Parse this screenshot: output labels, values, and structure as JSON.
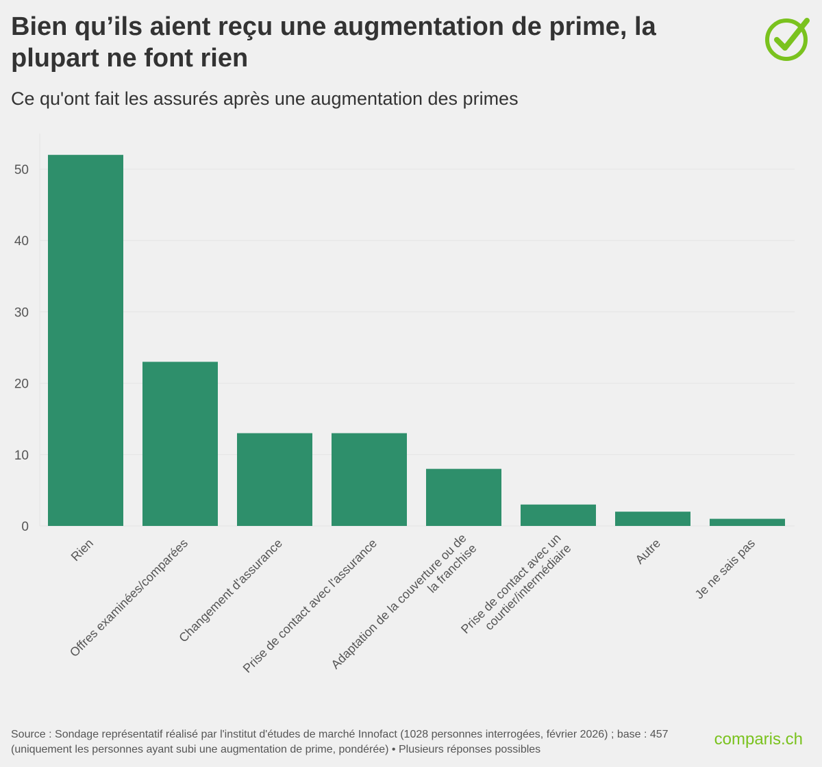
{
  "header": {
    "title": "Bien qu’ils aient reçu une augmentation de prime, la plupart ne font rien",
    "subtitle": "Ce qu'ont fait les assurés après une augmentation des primes"
  },
  "footer": {
    "source": "Source : Sondage représentatif réalisé par l'institut d'études de marché Innofact (1028 personnes interrogées, février 2026) ; base : 457 (uniquement les personnes ayant subi une augmentation de prime, pondérée) • Plusieurs réponses possibles",
    "brand": "comparis.ch"
  },
  "logo": {
    "icon": "check-circle-icon"
  },
  "colors": {
    "bar": "#2e8f6b",
    "brand": "#7ac21e",
    "grid": "#e4e4e4",
    "background": "#f0f0f0"
  },
  "chart_data": {
    "type": "bar",
    "title": "Bien qu’ils aient reçu une augmentation de prime, la plupart ne font rien",
    "subtitle": "Ce qu'ont fait les assurés après une augmentation des primes",
    "xlabel": "",
    "ylabel": "",
    "categories": [
      "Rien",
      "Offres examinées/comparées",
      "Changement d'assurance",
      "Prise de contact avec l'assurance",
      "Adaptation de la couverture ou de la franchise",
      "Prise de contact avec un courtier/intermédiaire",
      "Autre",
      "Je ne sais pas"
    ],
    "category_lines": [
      [
        "Rien"
      ],
      [
        "Offres examinées/comparées"
      ],
      [
        "Changement d'assurance"
      ],
      [
        "Prise de contact avec l'assurance"
      ],
      [
        "Adaptation de la couverture ou de",
        "la franchise"
      ],
      [
        "Prise de contact avec un",
        "courtier/intermédiaire"
      ],
      [
        "Autre"
      ],
      [
        "Je ne sais pas"
      ]
    ],
    "values": [
      52,
      23,
      13,
      13,
      8,
      3,
      2,
      1
    ],
    "ylim": [
      0,
      52
    ],
    "yticks": [
      0,
      10,
      20,
      30,
      40,
      50
    ],
    "grid": true,
    "legend": "none"
  }
}
